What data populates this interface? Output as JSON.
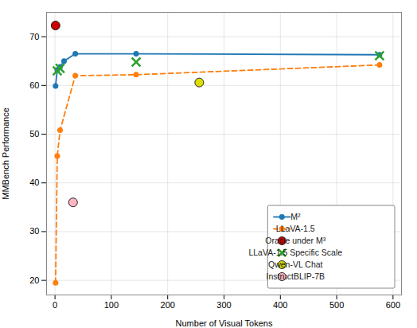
{
  "chart_data": {
    "type": "line",
    "xlabel": "Number of Visual Tokens",
    "ylabel": "MMBench Performance",
    "series": [
      {
        "name": "M²",
        "type": "line",
        "x": [
          1,
          4,
          9,
          16,
          36,
          144,
          576
        ],
        "values": [
          59.9,
          63.2,
          63.8,
          65.0,
          66.5,
          66.5,
          66.3
        ],
        "color": "#1f77b4",
        "line_style": "solid",
        "marker": "o"
      },
      {
        "name": "LLaVA-1.5",
        "type": "line",
        "x": [
          1,
          4,
          9,
          36,
          144,
          576
        ],
        "values": [
          19.5,
          45.5,
          50.8,
          62.0,
          62.2,
          64.2
        ],
        "color": "#ff7f0e",
        "line_style": "dashed",
        "marker": "o"
      },
      {
        "name": "Oracle under M³",
        "type": "scatter",
        "x": [
          1
        ],
        "values": [
          72.3
        ],
        "color": "#cc0000",
        "marker": "o"
      },
      {
        "name": "LLaVA-1.5 Specific Scale",
        "type": "scatter",
        "x": [
          4,
          9,
          144,
          576
        ],
        "values": [
          63.0,
          63.5,
          64.8,
          66.1
        ],
        "color": "#2ca02c",
        "marker": "x"
      },
      {
        "name": "Qwen-VL Chat",
        "type": "scatter",
        "x": [
          256
        ],
        "values": [
          60.6
        ],
        "color": "#dddd00",
        "marker": "o"
      },
      {
        "name": "InstructBLIP-7B",
        "type": "scatter",
        "x": [
          32
        ],
        "values": [
          36.0
        ],
        "color": "#ffb6c1",
        "marker": "o"
      }
    ],
    "xlim": [
      -15,
      615
    ],
    "ylim": [
      17,
      75
    ],
    "xticks": [
      0,
      100,
      200,
      300,
      400,
      500,
      600
    ],
    "yticks": [
      20,
      30,
      40,
      50,
      60,
      70
    ],
    "grid": true,
    "legend": "lower right"
  }
}
